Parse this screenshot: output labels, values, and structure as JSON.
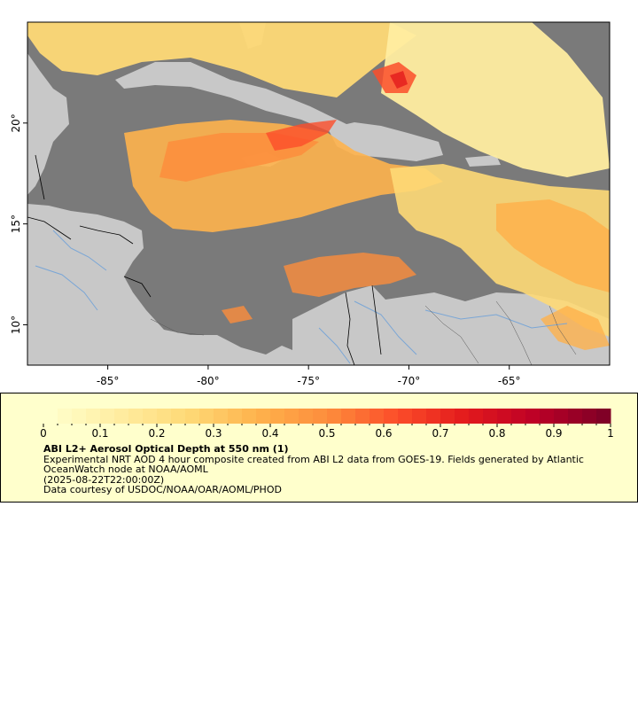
{
  "map": {
    "lon_range": [
      -89,
      -60
    ],
    "lat_range": [
      8,
      25
    ],
    "x_ticks": [
      "-85°",
      "-80°",
      "-75°",
      "-70°",
      "-65°"
    ],
    "x_tick_values": [
      -85,
      -80,
      -75,
      -70,
      -65
    ],
    "y_ticks": [
      "20°",
      "15°",
      "10°"
    ],
    "y_tick_values": [
      20,
      15,
      10
    ],
    "colors": {
      "ocean": "#7a7a7a",
      "land": "#c8c8c8",
      "rivers": "#7aa6d6",
      "borders": "#000000"
    }
  },
  "legend": {
    "title": "ABI L2+ Aerosol Optical Depth at 550 nm (1)",
    "description": "Experimental NRT AOD 4 hour composite created from ABI L2 data from GOES-19. Fields generated by Atlantic OceanWatch node at NOAA/AOML",
    "timestamp": "(2025-08-22T22:00:00Z)",
    "credit": "Data courtesy of USDOC/NOAA/OAR/AOML/PHOD",
    "scale_min": 0,
    "scale_max": 1,
    "tick_labels": [
      "0",
      "0.1",
      "0.2",
      "0.3",
      "0.4",
      "0.5",
      "0.6",
      "0.7",
      "0.8",
      "0.9",
      "1"
    ],
    "colormap": [
      "#ffffcc",
      "#ffeda0",
      "#fed976",
      "#feb24c",
      "#fd8d3c",
      "#fc4e2a",
      "#e31a1c",
      "#bd0026",
      "#800026"
    ]
  }
}
